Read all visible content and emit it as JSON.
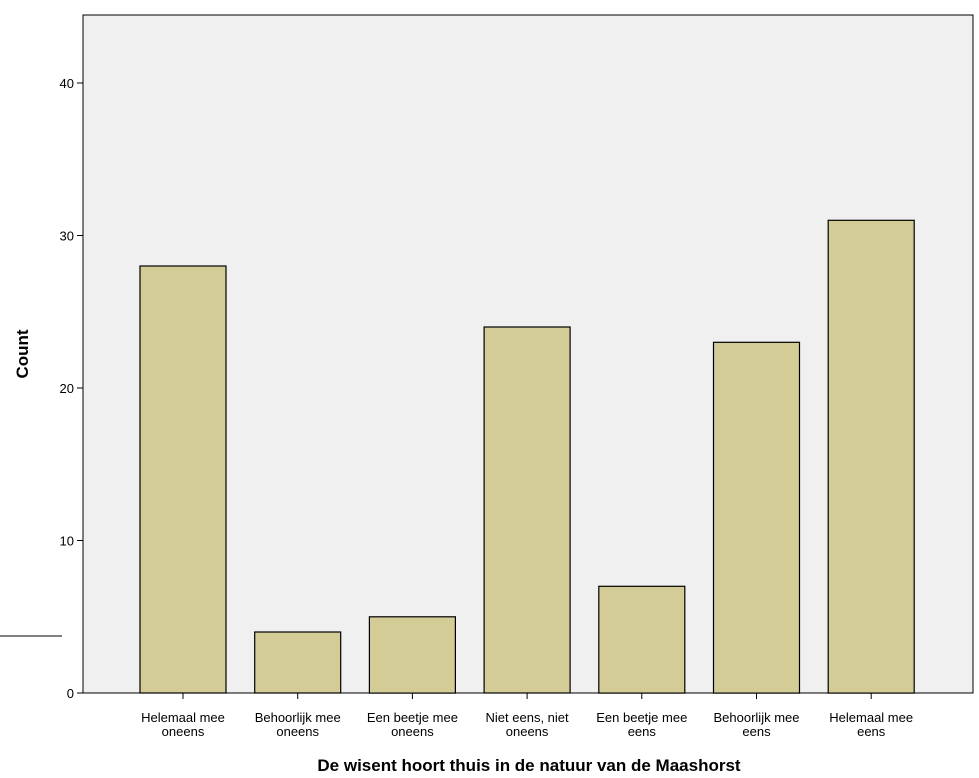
{
  "chart_data": {
    "type": "bar",
    "title": "",
    "xlabel": "De wisent hoort thuis in de natuur van de Maashorst",
    "ylabel": "Count",
    "ylim": [
      0,
      45
    ],
    "yticks": [
      0,
      10,
      20,
      30,
      40
    ],
    "grid": false,
    "categories": [
      [
        "Helemaal mee",
        "oneens"
      ],
      [
        "Behoorlijk mee",
        "oneens"
      ],
      [
        "Een beetje mee",
        "oneens"
      ],
      [
        "Niet eens, niet",
        "oneens"
      ],
      [
        "Een beetje mee",
        "eens"
      ],
      [
        "Behoorlijk mee",
        "eens"
      ],
      [
        "Helemaal mee",
        "eens"
      ]
    ],
    "values": [
      28,
      4,
      5,
      24,
      7,
      23,
      31
    ],
    "colors": {
      "bar_fill": "#d4cc96",
      "bar_stroke": "#000000",
      "plot_background": "#f0f0f0",
      "axis": "#000000"
    }
  }
}
